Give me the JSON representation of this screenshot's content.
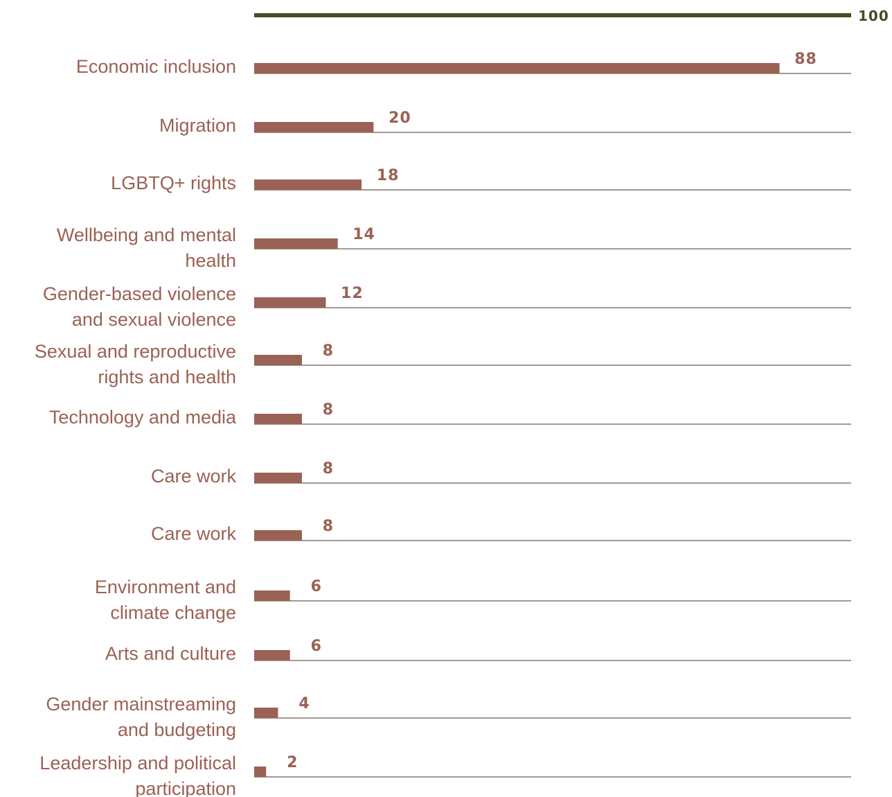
{
  "chart_data": {
    "type": "bar",
    "orientation": "horizontal",
    "categories": [
      "Economic inclusion",
      "Migration",
      "LGBTQ+ rights",
      "Wellbeing and mental health",
      "Gender-based violence and sexual violence",
      "Sexual and reproductive rights and health",
      "Technology and media",
      "Care work",
      "Care work",
      "Environment and climate change",
      "Arts and culture",
      "Gender mainstreaming and budgeting",
      "Leadership and political participation"
    ],
    "category_lines": [
      [
        "Economic inclusion"
      ],
      [
        "Migration"
      ],
      [
        "LGBTQ+ rights"
      ],
      [
        "Wellbeing and mental",
        "health"
      ],
      [
        "Gender-based violence",
        "and sexual violence"
      ],
      [
        "Sexual and reproductive",
        "rights and health"
      ],
      [
        "Technology and media"
      ],
      [
        "Care work"
      ],
      [
        "Care work"
      ],
      [
        "Environment and",
        "climate change"
      ],
      [
        "Arts and culture"
      ],
      [
        "Gender mainstreaming",
        "and budgeting"
      ],
      [
        "Leadership and political",
        "participation"
      ]
    ],
    "values": [
      88,
      20,
      18,
      14,
      12,
      8,
      8,
      8,
      8,
      6,
      6,
      4,
      2
    ],
    "max_value": 100,
    "max_label": "100",
    "xlim": [
      0,
      100
    ],
    "title": "",
    "xlabel": "",
    "ylabel": "",
    "grid": false,
    "legend": "none",
    "colors": {
      "bar": "#9a6254",
      "label": "#9a6254",
      "max_line": "#4b4a23",
      "baseline": "#6f5a54"
    }
  }
}
